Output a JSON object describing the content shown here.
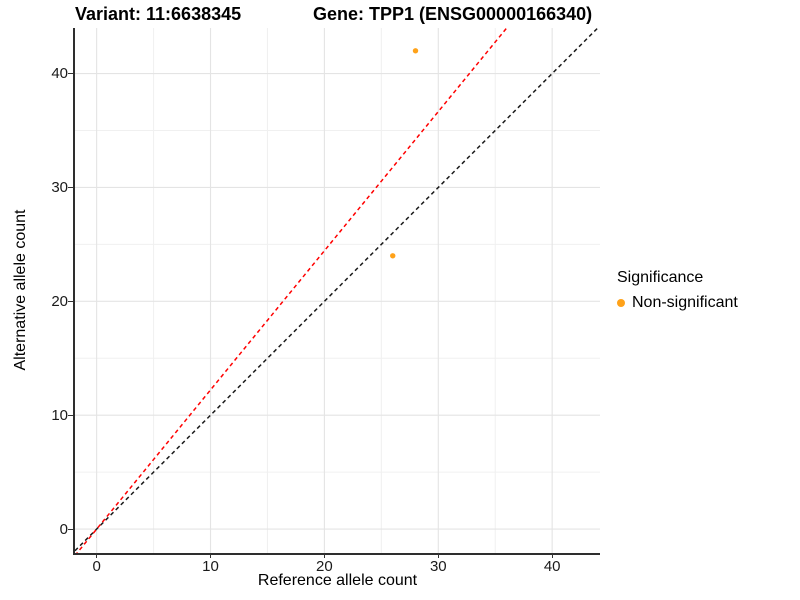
{
  "titles": {
    "variant": "Variant: 11:6638345",
    "gene": "Gene: TPP1 (ENSG00000166340)"
  },
  "x_axis": {
    "label": "Reference allele count",
    "tick_labels": [
      "0",
      "10",
      "20",
      "30",
      "40"
    ]
  },
  "y_axis": {
    "label": "Alternative allele count",
    "tick_labels": [
      "0",
      "10",
      "20",
      "30",
      "40"
    ]
  },
  "legend": {
    "title": "Significance",
    "items": [
      {
        "label": "Non-significant",
        "color": "#FFA219"
      }
    ]
  },
  "chart_data": {
    "type": "scatter",
    "title_left": "Variant: 11:6638345",
    "title_right": "Gene: TPP1 (ENSG00000166340)",
    "xlabel": "Reference allele count",
    "ylabel": "Alternative allele count",
    "xlim": [
      -1.9,
      44.2
    ],
    "ylim": [
      -2.1,
      44.0
    ],
    "x_ticks": [
      0,
      10,
      20,
      30,
      40
    ],
    "y_ticks": [
      0,
      10,
      20,
      30,
      40
    ],
    "minor_grid": [
      5,
      15,
      25,
      35
    ],
    "grid": true,
    "legend_position": "right",
    "colors": {
      "major_grid": "#E4E4E4",
      "minor_grid": "#F0F0F0",
      "axis_line": "#2e2e2e"
    },
    "series": [
      {
        "name": "Non-significant",
        "color": "#FFA219",
        "marker": "circle",
        "points": [
          {
            "x": 28,
            "y": 42
          },
          {
            "x": 26,
            "y": 24
          }
        ]
      }
    ],
    "reference_lines": [
      {
        "name": "identity-line",
        "slope": 1.0,
        "intercept": 0,
        "color": "#1A1A1A",
        "style": "dashed"
      },
      {
        "name": "alt-ref-ratio-line",
        "slope": 1.222,
        "intercept": 0,
        "color": "#FF0000",
        "style": "dashed"
      }
    ]
  }
}
